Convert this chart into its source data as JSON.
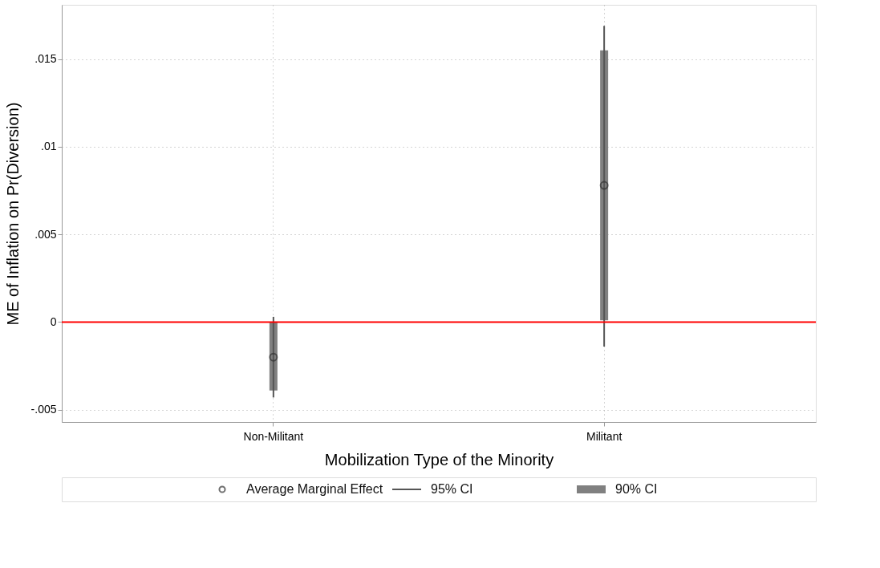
{
  "chart_data": {
    "type": "scatter",
    "xlabel": "Mobilization Type of the Minority",
    "ylabel": "ME of Inflation on Pr(Diversion)",
    "categories": [
      "Non-Militant",
      "Militant"
    ],
    "series": [
      {
        "name": "90% CI",
        "type": "bar",
        "color": "#808080",
        "base": [
          -0.0039,
          0.0001
        ],
        "values": [
          0.0039,
          0.0154
        ]
      },
      {
        "name": "95% CI",
        "type": "bar",
        "color": "#555555",
        "base": [
          -0.0043,
          -0.0014
        ],
        "values": [
          0.0046,
          0.0183
        ]
      },
      {
        "name": "Average Marginal Effect",
        "color": "#333333",
        "marker": "circle",
        "values": [
          -0.002,
          0.0078
        ]
      }
    ],
    "ylim": [
      -0.0057,
      0.0181
    ],
    "yticks": [
      {
        "value": -0.005,
        "label": "-.005"
      },
      0,
      {
        "value": 0.005,
        "label": ".005"
      },
      {
        "value": 0.01,
        "label": ".01"
      },
      {
        "value": 0.015,
        "label": ".015"
      }
    ],
    "ref_lines": [
      {
        "axis": "y",
        "value": 0,
        "color": "#ff0000"
      }
    ],
    "grid": true,
    "legend": "bottom"
  }
}
